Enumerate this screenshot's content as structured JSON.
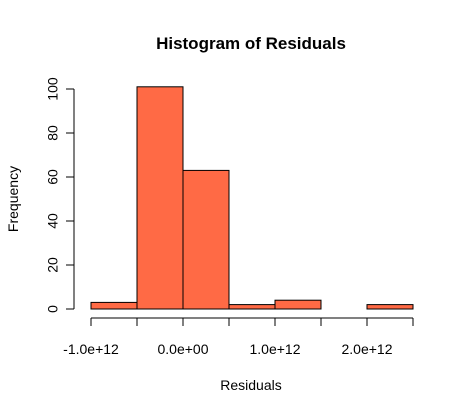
{
  "chart_data": {
    "type": "bar",
    "title": "Histogram of Residuals",
    "xlabel": "Residuals",
    "ylabel": "Frequency",
    "bar_color": "#FF6A45",
    "bins": [
      {
        "start": -1000000000000.0,
        "end": -500000000000.0,
        "count": 3
      },
      {
        "start": -500000000000.0,
        "end": 0.0,
        "count": 101
      },
      {
        "start": 0.0,
        "end": 500000000000.0,
        "count": 63
      },
      {
        "start": 500000000000.0,
        "end": 1000000000000.0,
        "count": 2
      },
      {
        "start": 1000000000000.0,
        "end": 1500000000000.0,
        "count": 4
      },
      {
        "start": 1500000000000.0,
        "end": 2000000000000.0,
        "count": 0
      },
      {
        "start": 2000000000000.0,
        "end": 2500000000000.0,
        "count": 2
      }
    ],
    "xlim": [
      -1000000000000.0,
      2500000000000.0
    ],
    "ylim": [
      0,
      100
    ],
    "x_ticks": [
      -1000000000000.0,
      -500000000000.0,
      0.0,
      500000000000.0,
      1000000000000.0,
      1500000000000.0,
      2000000000000.0,
      2500000000000.0
    ],
    "x_tick_labels": [
      {
        "value": -1000000000000.0,
        "label": "-1.0e+12"
      },
      {
        "value": 0.0,
        "label": "0.0e+00"
      },
      {
        "value": 1000000000000.0,
        "label": "1.0e+12"
      },
      {
        "value": 2000000000000.0,
        "label": "2.0e+12"
      }
    ],
    "y_ticks": [
      0,
      20,
      40,
      60,
      80,
      100
    ],
    "y_tick_labels": [
      "0",
      "20",
      "40",
      "60",
      "80",
      "100"
    ],
    "grid": false,
    "legend": "none"
  }
}
